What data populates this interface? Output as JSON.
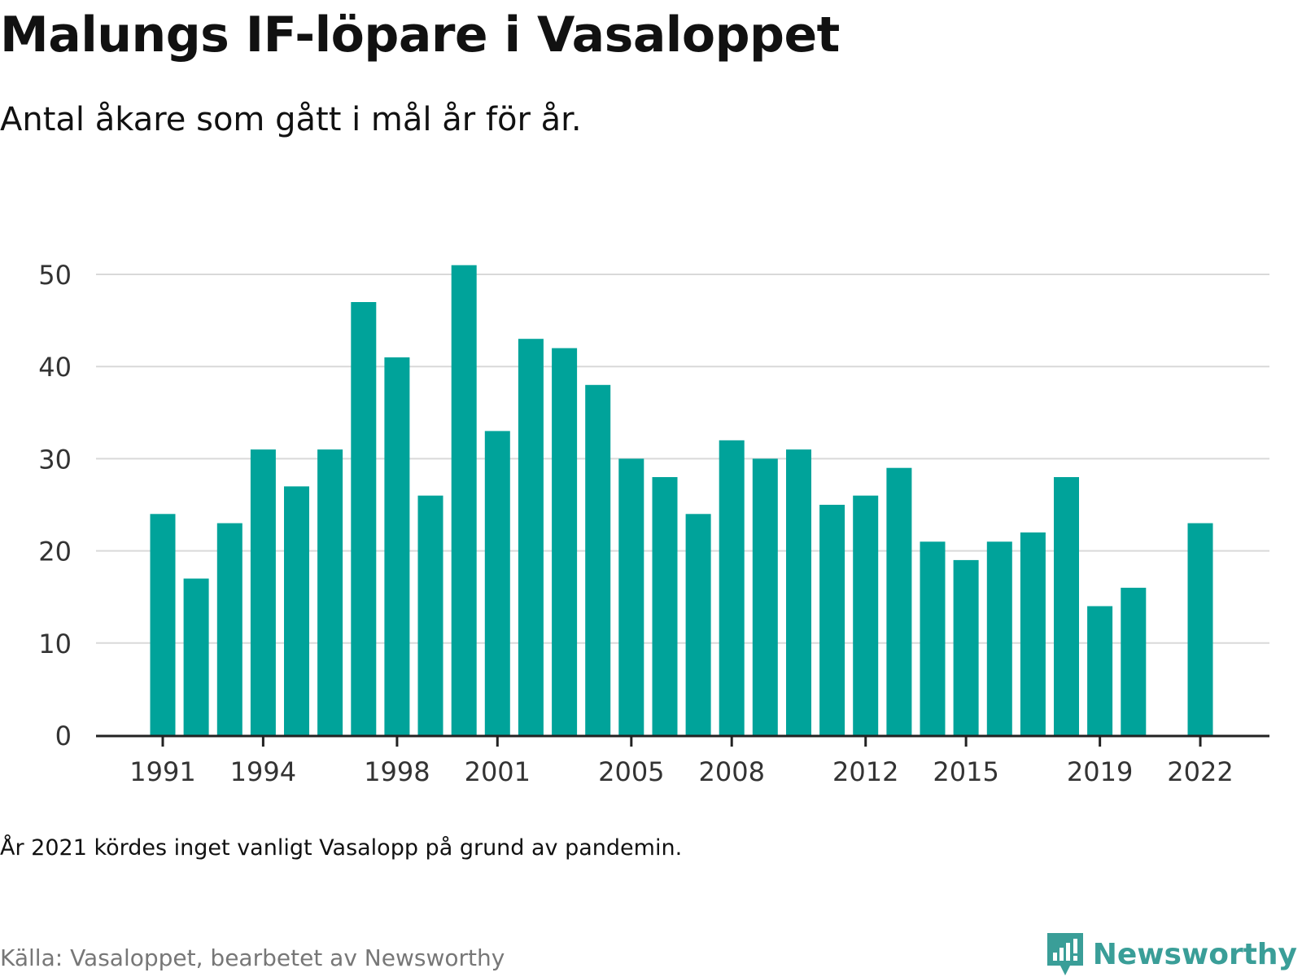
{
  "header": {
    "title": "Malungs IF-löpare i Vasaloppet",
    "subtitle": "Antal åkare som gått i mål år för år."
  },
  "footer": {
    "note": "År 2021 kördes inget vanligt Vasalopp på grund av pandemin.",
    "source": "Källa: Vasaloppet, bearbetet av Newsworthy",
    "brand": "Newsworthy"
  },
  "colors": {
    "bar": "#00a39a",
    "grid": "#d9d9d9",
    "axis": "#222222",
    "tick_text": "#333333",
    "brand": "#3a9e98"
  },
  "chart_data": {
    "type": "bar",
    "title": "Malungs IF-löpare i Vasaloppet",
    "subtitle": "Antal åkare som gått i mål år för år.",
    "xlabel": "",
    "ylabel": "",
    "ylim": [
      0,
      50
    ],
    "yticks": [
      0,
      10,
      20,
      30,
      40,
      50
    ],
    "grid": true,
    "legend": "none",
    "categories": [
      1991,
      1992,
      1993,
      1994,
      1995,
      1996,
      1997,
      1998,
      1999,
      2000,
      2001,
      2002,
      2003,
      2004,
      2005,
      2006,
      2007,
      2008,
      2009,
      2010,
      2011,
      2012,
      2013,
      2014,
      2015,
      2016,
      2017,
      2018,
      2019,
      2020,
      2021,
      2022
    ],
    "values": [
      24,
      17,
      23,
      31,
      27,
      31,
      47,
      41,
      26,
      51,
      33,
      43,
      42,
      38,
      30,
      28,
      24,
      32,
      30,
      31,
      25,
      26,
      29,
      21,
      19,
      21,
      22,
      28,
      14,
      16,
      null,
      23
    ],
    "xtick_labels": [
      "1991",
      "1994",
      "1998",
      "2001",
      "2005",
      "2008",
      "2012",
      "2015",
      "2019",
      "2022"
    ]
  }
}
